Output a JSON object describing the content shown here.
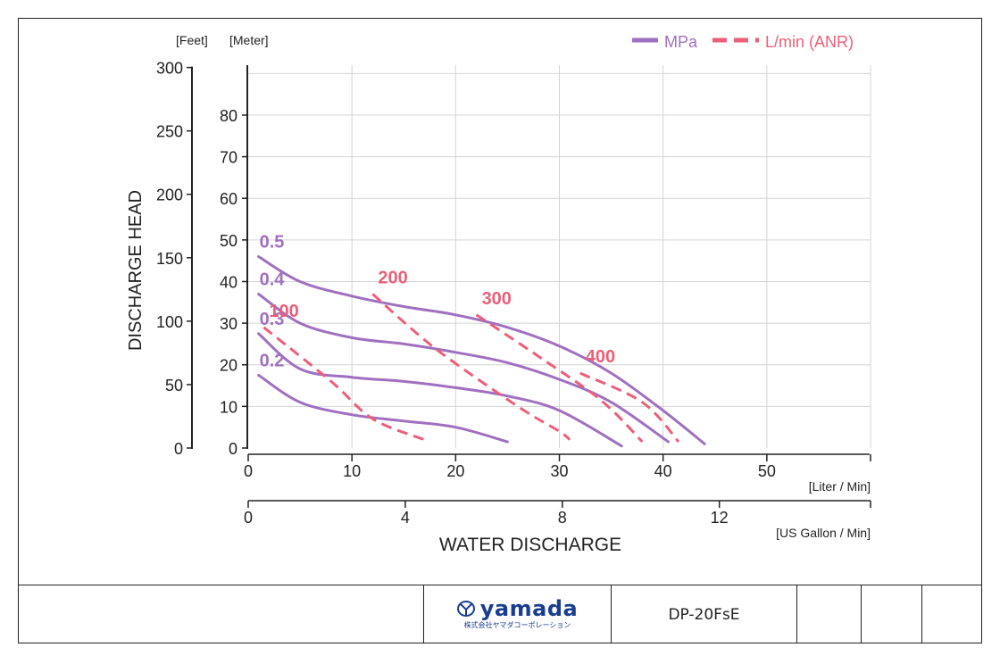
{
  "chart_data": {
    "type": "line",
    "x_axis_primary": {
      "label": "[Liter / Min]",
      "ticks": [
        0,
        10,
        20,
        30,
        40,
        50
      ],
      "range": [
        0,
        60
      ]
    },
    "x_axis_secondary": {
      "label": "[US Gallon / Min]",
      "ticks": [
        0,
        4,
        8,
        12
      ],
      "range_gal": [
        0,
        15.85
      ]
    },
    "xlabel": "WATER DISCHARGE",
    "ylabel": "DISCHARGE HEAD",
    "y_axis_feet": {
      "label": "[Feet]",
      "ticks": [
        0,
        50,
        100,
        150,
        200,
        250,
        300
      ]
    },
    "y_axis_meter": {
      "label": "[Meter]",
      "ticks": [
        0,
        10,
        20,
        30,
        40,
        50,
        60,
        70,
        80
      ],
      "range": [
        0,
        92
      ]
    },
    "grid": true,
    "legend": {
      "placement": "top-right",
      "entries": [
        {
          "label": "MPa",
          "style": "solid",
          "color": "#a070c0"
        },
        {
          "label": "L/min (ANR)",
          "style": "dashed",
          "color": "#ec5f78"
        }
      ]
    },
    "pressure_series": [
      {
        "label": "0.5",
        "points": [
          [
            1,
            46
          ],
          [
            5,
            40
          ],
          [
            10,
            36.5
          ],
          [
            15,
            34
          ],
          [
            20,
            32
          ],
          [
            25,
            29
          ],
          [
            30,
            24.5
          ],
          [
            35,
            18
          ],
          [
            40,
            9
          ],
          [
            44,
            1
          ]
        ]
      },
      {
        "label": "0.4",
        "points": [
          [
            1,
            37
          ],
          [
            5,
            30
          ],
          [
            10,
            26.5
          ],
          [
            15,
            25
          ],
          [
            20,
            23
          ],
          [
            25,
            20.5
          ],
          [
            30,
            16.5
          ],
          [
            35,
            11
          ],
          [
            40.5,
            1.5
          ]
        ]
      },
      {
        "label": "0.3",
        "points": [
          [
            1,
            27.5
          ],
          [
            5,
            19
          ],
          [
            10,
            17
          ],
          [
            15,
            16
          ],
          [
            20,
            14.5
          ],
          [
            25,
            12.5
          ],
          [
            30,
            9
          ],
          [
            36,
            0.5
          ]
        ]
      },
      {
        "label": "0.2",
        "points": [
          [
            1,
            17.5
          ],
          [
            5,
            11
          ],
          [
            10,
            8
          ],
          [
            15,
            6.5
          ],
          [
            20,
            5
          ],
          [
            25,
            1.5
          ]
        ]
      }
    ],
    "airflow_series": [
      {
        "label": "100",
        "points": [
          [
            1.5,
            29
          ],
          [
            8,
            16
          ],
          [
            12,
            7
          ],
          [
            17,
            2
          ]
        ]
      },
      {
        "label": "200",
        "points": [
          [
            12,
            37
          ],
          [
            18,
            24
          ],
          [
            26,
            10
          ],
          [
            30,
            4
          ],
          [
            31,
            2
          ]
        ]
      },
      {
        "label": "300",
        "points": [
          [
            22,
            32
          ],
          [
            28,
            22
          ],
          [
            34,
            11.5
          ],
          [
            38,
            1.5
          ]
        ]
      },
      {
        "label": "400",
        "points": [
          [
            32,
            18
          ],
          [
            38,
            11
          ],
          [
            41.5,
            1.5
          ]
        ]
      }
    ]
  },
  "footer": {
    "logo": {
      "name": "yamada",
      "sub": "株式会社ヤマダコーポレーション",
      "color": "#1a3e8f"
    },
    "model": "DP-20FsE"
  }
}
